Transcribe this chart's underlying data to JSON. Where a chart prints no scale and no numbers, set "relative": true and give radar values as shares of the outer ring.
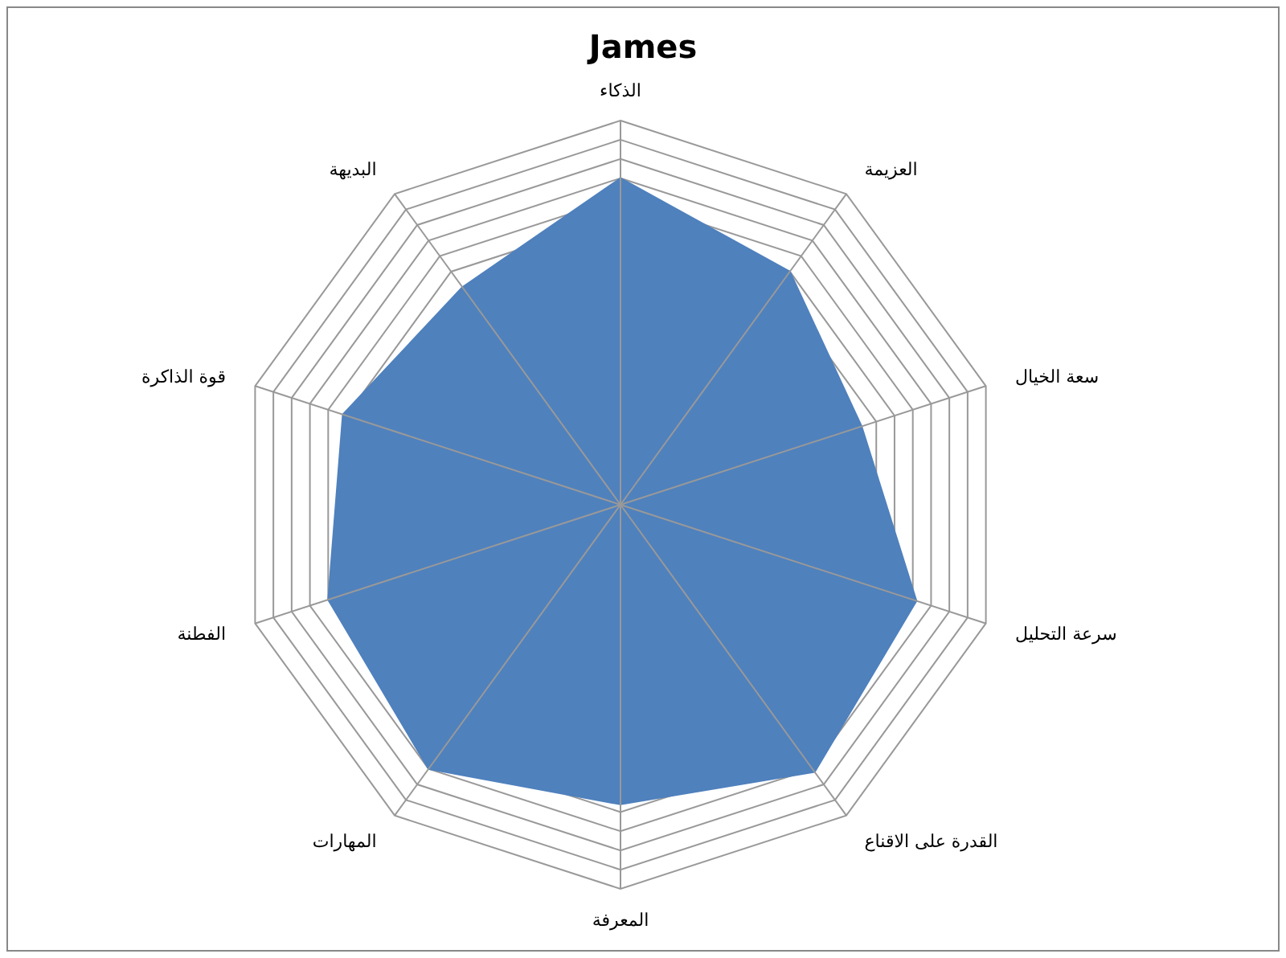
{
  "chart_data": {
    "type": "radar",
    "title": "James",
    "relative": true,
    "legend": false,
    "categories": [
      "الذكاء",
      "العزيمة",
      "سعة الخيال",
      "سرعة التحليل",
      "القدرة على الاقناع",
      "المعرفة",
      "المهارات",
      "الفطنة",
      "قوة الذاكرة",
      "البديهة"
    ],
    "series": [
      {
        "color": "#4f81bd",
        "values": [
          0.85,
          0.75,
          0.66,
          0.81,
          0.86,
          0.78,
          0.85,
          0.8,
          0.76,
          0.7
        ]
      }
    ]
  }
}
